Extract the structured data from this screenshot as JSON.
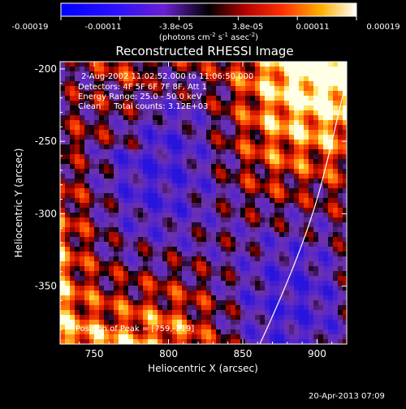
{
  "chart_data": {
    "type": "heatmap",
    "title": "Reconstructed RHESSI Image",
    "xlabel": "Heliocentric X (arcsec)",
    "ylabel": "Heliocentric Y (arcsec)",
    "xlim": [
      727,
      920
    ],
    "ylim": [
      -390,
      -195
    ],
    "xticks": [
      "750",
      "800",
      "850",
      "900"
    ],
    "yticks": [
      "-200",
      "-250",
      "-300",
      "-350"
    ],
    "colorbar": {
      "range": [
        -0.00019,
        0.00019
      ],
      "ticks": [
        "-0.00019",
        "-0.00011",
        "-3.8e-05",
        "3.8e-05",
        "0.00011",
        "0.00019"
      ],
      "units_prefix": "(photons cm",
      "units_exp1": "-2",
      "units_mid": " s",
      "units_exp2": "-1",
      "units_mid2": " asec",
      "units_exp3": "-2",
      "units_suffix": ")"
    },
    "annotations": [
      "2-Aug-2002 11:02:52.000 to 11:06:50.000",
      "Detectors: 4F 5F 6F 7F 8F, Att 1",
      "Energy Range: 25.0 - 50.0 keV",
      "Clean     Total counts: 3.12E+03"
    ],
    "peak_label": "Position of Peak = [759,-219]",
    "peak": [
      759,
      -219
    ],
    "limb_line": true
  },
  "timestamp": "20-Apr-2013 07:09"
}
